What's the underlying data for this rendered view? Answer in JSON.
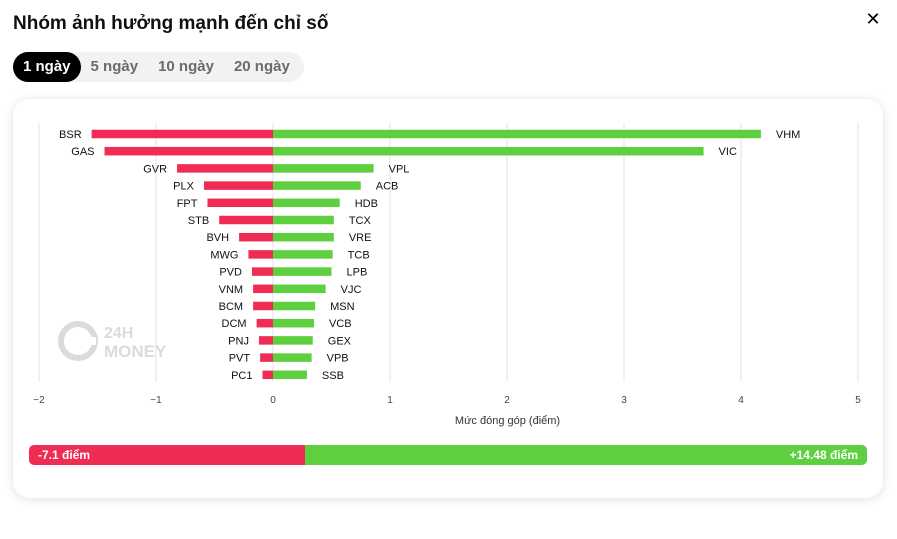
{
  "header": {
    "title": "Nhóm ảnh hưởng mạnh đến chỉ số",
    "close_icon": "close-icon"
  },
  "tabs": [
    {
      "label": "1 ngày",
      "active": true
    },
    {
      "label": "5 ngày",
      "active": false
    },
    {
      "label": "10 ngày",
      "active": false
    },
    {
      "label": "20 ngày",
      "active": false
    }
  ],
  "watermark": {
    "line1": "24H",
    "line2": "MONEY"
  },
  "colors": {
    "negative": "#ef2c53",
    "positive": "#5ecf3f",
    "grid": "#e3e3e3"
  },
  "chart_data": {
    "type": "bar",
    "orientation": "horizontal",
    "xlabel": "Mức đóng góp (điểm)",
    "xlim": [
      -2,
      5
    ],
    "xticks": [
      -2,
      -1,
      0,
      1,
      2,
      3,
      4,
      5
    ],
    "xtick_labels": [
      "−2",
      "−1",
      "0",
      "1",
      "2",
      "3",
      "4",
      "5"
    ],
    "grid": true,
    "negative": {
      "categories": [
        "BSR",
        "GAS",
        "GVR",
        "PLX",
        "FPT",
        "STB",
        "BVH",
        "MWG",
        "PVD",
        "VNM",
        "BCM",
        "DCM",
        "PNJ",
        "PVT",
        "PC1"
      ],
      "values": [
        -1.55,
        -1.44,
        -0.82,
        -0.59,
        -0.56,
        -0.46,
        -0.29,
        -0.21,
        -0.18,
        -0.17,
        -0.17,
        -0.14,
        -0.12,
        -0.11,
        -0.09
      ]
    },
    "positive": {
      "categories": [
        "VHM",
        "VIC",
        "VPL",
        "ACB",
        "HDB",
        "TCX",
        "VRE",
        "TCB",
        "LPB",
        "VJC",
        "MSN",
        "VCB",
        "GEX",
        "VPB",
        "SSB"
      ],
      "values": [
        4.17,
        3.68,
        0.86,
        0.75,
        0.57,
        0.52,
        0.52,
        0.51,
        0.5,
        0.45,
        0.36,
        0.35,
        0.34,
        0.33,
        0.29
      ]
    }
  },
  "summary": {
    "negative_label": "-7.1 điểm",
    "positive_label": "+14.48 điểm",
    "negative_total": -7.1,
    "positive_total": 14.48
  }
}
